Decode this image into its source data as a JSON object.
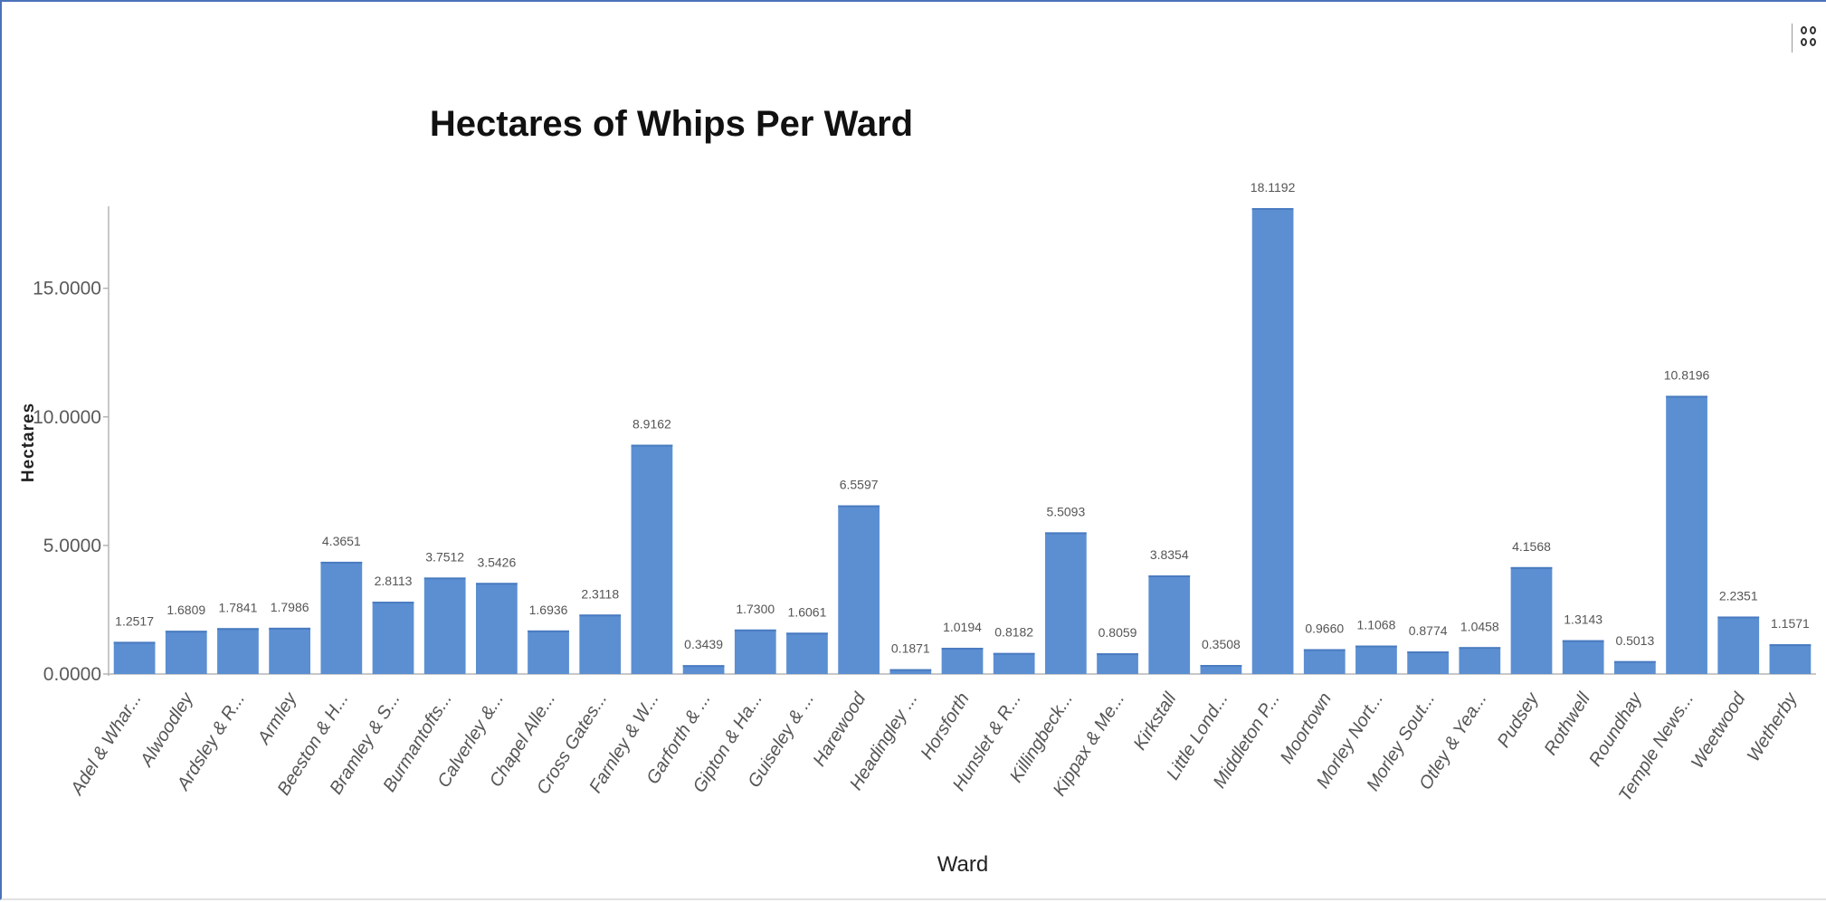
{
  "chart_data": {
    "type": "bar",
    "title": "Hectares of Whips Per Ward",
    "xlabel": "Ward",
    "ylabel": "Hectares",
    "ylim": [
      0,
      18.1192
    ],
    "yticks": [
      0,
      5,
      10,
      15
    ],
    "ytick_labels": [
      "0.0000",
      "5.0000",
      "10.0000",
      "15.0000"
    ],
    "grid": false,
    "legend": "none",
    "bar_color": "#5b8fd2",
    "categories": [
      "Adel & Whar...",
      "Alwoodley",
      "Ardsley & R...",
      "Armley",
      "Beeston & H...",
      "Bramley & S...",
      "Burmantofts...",
      "Calverley &...",
      "Chapel Alle...",
      "Cross Gates...",
      "Farnley & W...",
      "Garforth & ...",
      "Gipton & Ha...",
      "Guiseley & ...",
      "Harewood",
      "Headingley ...",
      "Horsforth",
      "Hunslet & R...",
      "Killingbeck...",
      "Kippax & Me...",
      "Kirkstall",
      "Little Lond...",
      "Middleton P...",
      "Moortown",
      "Morley Nort...",
      "Morley Sout...",
      "Otley & Yea...",
      "Pudsey",
      "Rothwell",
      "Roundhay",
      "Temple News...",
      "Weetwood",
      "Wetherby"
    ],
    "values": [
      1.2517,
      1.6809,
      1.7841,
      1.7986,
      4.3651,
      2.8113,
      3.7512,
      3.5426,
      1.6936,
      2.3118,
      8.9162,
      0.3439,
      1.73,
      1.6061,
      6.5597,
      0.1871,
      1.0194,
      0.8182,
      5.5093,
      0.8059,
      3.8354,
      0.3508,
      18.1192,
      0.966,
      1.1068,
      0.8774,
      1.0458,
      4.1568,
      1.3143,
      0.5013,
      10.8196,
      2.2351,
      1.1571
    ],
    "data_labels": [
      "1.2517",
      "1.6809",
      "1.7841",
      "1.7986",
      "4.3651",
      "2.8113",
      "3.7512",
      "3.5426",
      "1.6936",
      "2.3118",
      "8.9162",
      "0.3439",
      "1.7300",
      "1.6061",
      "6.5597",
      "0.1871",
      "1.0194",
      "0.8182",
      "5.5093",
      "0.8059",
      "3.8354",
      "0.3508",
      "18.1192",
      "0.9660",
      "1.1068",
      "0.8774",
      "1.0458",
      "4.1568",
      "1.3143",
      "0.5013",
      "10.8196",
      "2.2351",
      "1.1571"
    ]
  },
  "toolbar": {
    "options_icon": "grid-options-icon"
  }
}
